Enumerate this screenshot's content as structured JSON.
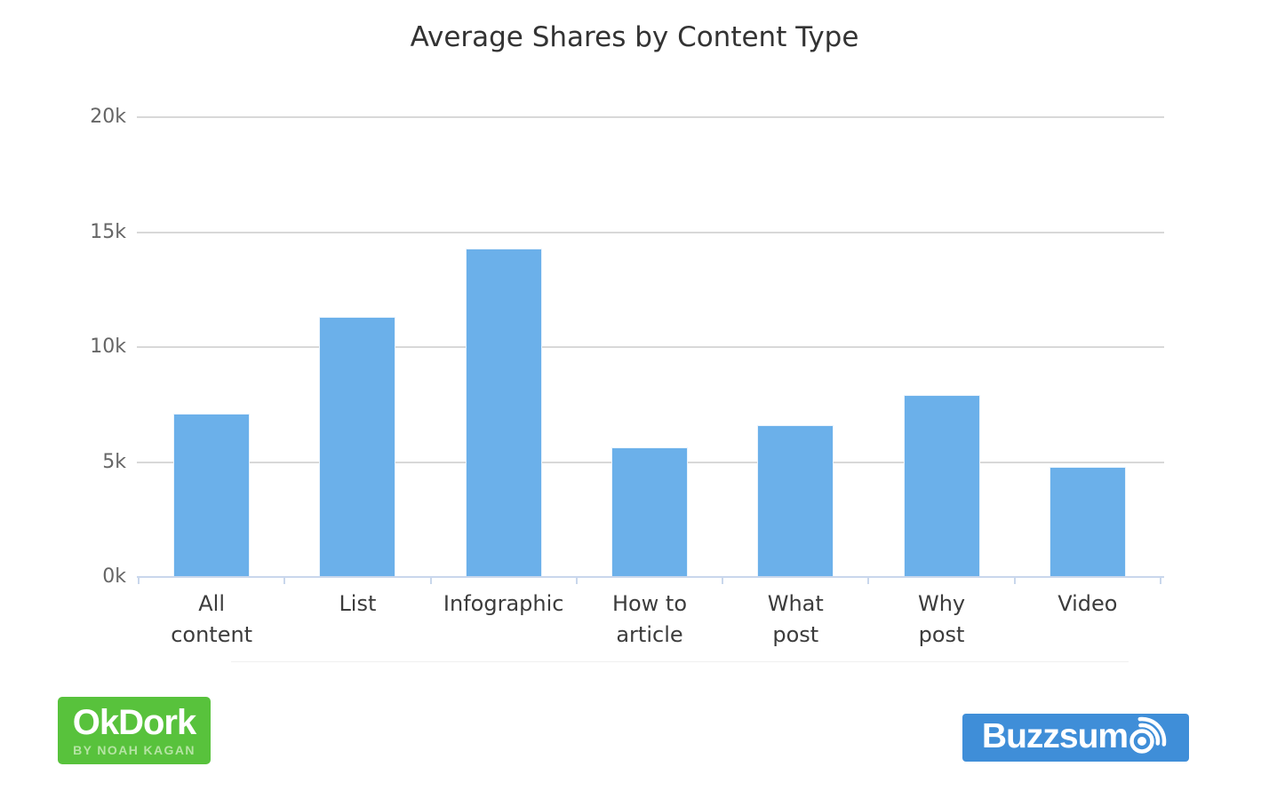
{
  "chart_data": {
    "type": "bar",
    "title": "Average Shares by Content Type",
    "categories": [
      "All content",
      "List",
      "Infographic",
      "How to article",
      "What post",
      "Why post",
      "Video"
    ],
    "categories_display": [
      "All\ncontent",
      "List",
      "Infographic",
      "How to\narticle",
      "What\npost",
      "Why\npost",
      "Video"
    ],
    "values": [
      7100,
      11300,
      14300,
      5650,
      6600,
      7900,
      4800
    ],
    "series_name": "Average Shares",
    "xlabel": "",
    "ylabel": "",
    "ylim": [
      0,
      20000
    ],
    "yticks": [
      {
        "value": 0,
        "label": "0k"
      },
      {
        "value": 5000,
        "label": "5k"
      },
      {
        "value": 10000,
        "label": "10k"
      },
      {
        "value": 15000,
        "label": "15k"
      },
      {
        "value": 20000,
        "label": "20k"
      }
    ],
    "grid": true,
    "legend": false,
    "bar_color": "#6bb0ea",
    "gridline_color": "#d8d8d8",
    "axis_line_color": "#c9d7ec",
    "title_color": "#333333",
    "ytick_label_color": "#666666",
    "xtick_label_color": "#3c3c3c",
    "background_color": "#ffffff"
  },
  "branding": {
    "okdork": {
      "title": "OkDork",
      "subtitle": "BY NOAH KAGAN",
      "bg_color": "#58c23c",
      "title_color": "#ffffff",
      "subtitle_color": "#b5e4a3"
    },
    "buzzsumo": {
      "text": "Buzzsum",
      "full_name": "Buzzsumo",
      "icon": "signal-o-icon",
      "bg_color": "#3f8ed8",
      "text_color": "#ffffff"
    }
  }
}
